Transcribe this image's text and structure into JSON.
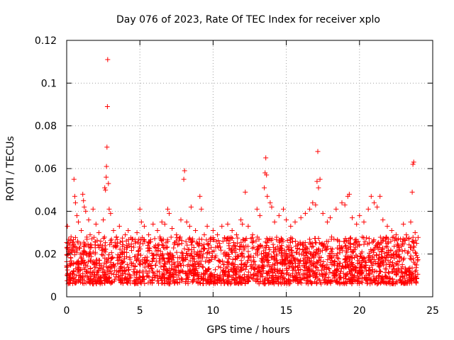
{
  "chart_data": {
    "type": "scatter",
    "title": "Day 076 of 2023, Rate Of TEC Index for receiver xplo",
    "xlabel": "GPS time / hours",
    "ylabel": "ROTI / TECUs",
    "xlim": [
      0,
      25
    ],
    "ylim": [
      0,
      0.12
    ],
    "x_ticks": [
      0,
      5,
      10,
      15,
      20,
      25
    ],
    "x_tick_labels": [
      "0",
      "5",
      "10",
      "15",
      "20",
      "25"
    ],
    "y_ticks": [
      0,
      0.02,
      0.04,
      0.06,
      0.08,
      0.1,
      0.12
    ],
    "y_tick_labels": [
      "0",
      "0.02",
      "0.04",
      "0.06",
      "0.08",
      "0.1",
      "0.12"
    ],
    "grid": true,
    "marker": "plus",
    "color": "#ff0000",
    "series": [
      {
        "name": "ROTI",
        "points": [
          [
            0.05,
            0.033
          ],
          [
            0.1,
            0.022
          ],
          [
            0.3,
            0.028
          ],
          [
            0.5,
            0.055
          ],
          [
            0.55,
            0.047
          ],
          [
            0.6,
            0.044
          ],
          [
            0.7,
            0.038
          ],
          [
            0.8,
            0.035
          ],
          [
            1.0,
            0.031
          ],
          [
            1.1,
            0.048
          ],
          [
            1.15,
            0.045
          ],
          [
            1.2,
            0.042
          ],
          [
            1.3,
            0.04
          ],
          [
            1.5,
            0.036
          ],
          [
            1.6,
            0.029
          ],
          [
            1.8,
            0.041
          ],
          [
            2.0,
            0.034
          ],
          [
            2.2,
            0.03
          ],
          [
            2.5,
            0.036
          ],
          [
            2.6,
            0.051
          ],
          [
            2.65,
            0.05
          ],
          [
            2.7,
            0.056
          ],
          [
            2.72,
            0.061
          ],
          [
            2.75,
            0.07
          ],
          [
            2.78,
            0.089
          ],
          [
            2.8,
            0.111
          ],
          [
            2.85,
            0.053
          ],
          [
            2.9,
            0.041
          ],
          [
            3.0,
            0.039
          ],
          [
            3.2,
            0.031
          ],
          [
            3.4,
            0.028
          ],
          [
            3.6,
            0.033
          ],
          [
            3.8,
            0.026
          ],
          [
            4.0,
            0.029
          ],
          [
            4.2,
            0.031
          ],
          [
            4.5,
            0.027
          ],
          [
            4.8,
            0.03
          ],
          [
            5.0,
            0.041
          ],
          [
            5.1,
            0.035
          ],
          [
            5.3,
            0.033
          ],
          [
            5.6,
            0.029
          ],
          [
            5.9,
            0.034
          ],
          [
            6.2,
            0.031
          ],
          [
            6.5,
            0.035
          ],
          [
            6.7,
            0.034
          ],
          [
            6.9,
            0.041
          ],
          [
            7.0,
            0.039
          ],
          [
            7.2,
            0.032
          ],
          [
            7.5,
            0.029
          ],
          [
            7.8,
            0.036
          ],
          [
            8.0,
            0.055
          ],
          [
            8.05,
            0.059
          ],
          [
            8.2,
            0.035
          ],
          [
            8.4,
            0.033
          ],
          [
            8.5,
            0.042
          ],
          [
            8.8,
            0.031
          ],
          [
            9.1,
            0.047
          ],
          [
            9.2,
            0.041
          ],
          [
            9.4,
            0.029
          ],
          [
            9.6,
            0.033
          ],
          [
            9.8,
            0.027
          ],
          [
            10.0,
            0.031
          ],
          [
            10.3,
            0.029
          ],
          [
            10.6,
            0.033
          ],
          [
            11.0,
            0.034
          ],
          [
            11.3,
            0.031
          ],
          [
            11.6,
            0.029
          ],
          [
            11.9,
            0.036
          ],
          [
            12.0,
            0.034
          ],
          [
            12.2,
            0.049
          ],
          [
            12.4,
            0.033
          ],
          [
            12.7,
            0.029
          ],
          [
            13.0,
            0.041
          ],
          [
            13.2,
            0.038
          ],
          [
            13.5,
            0.051
          ],
          [
            13.55,
            0.058
          ],
          [
            13.6,
            0.065
          ],
          [
            13.65,
            0.057
          ],
          [
            13.7,
            0.047
          ],
          [
            13.9,
            0.044
          ],
          [
            14.0,
            0.042
          ],
          [
            14.2,
            0.035
          ],
          [
            14.5,
            0.038
          ],
          [
            14.8,
            0.041
          ],
          [
            15.0,
            0.036
          ],
          [
            15.3,
            0.033
          ],
          [
            15.6,
            0.035
          ],
          [
            16.0,
            0.037
          ],
          [
            16.3,
            0.039
          ],
          [
            16.6,
            0.041
          ],
          [
            16.8,
            0.044
          ],
          [
            17.0,
            0.043
          ],
          [
            17.1,
            0.054
          ],
          [
            17.15,
            0.068
          ],
          [
            17.2,
            0.051
          ],
          [
            17.3,
            0.055
          ],
          [
            17.5,
            0.039
          ],
          [
            17.8,
            0.035
          ],
          [
            18.0,
            0.037
          ],
          [
            18.4,
            0.041
          ],
          [
            18.8,
            0.044
          ],
          [
            19.0,
            0.043
          ],
          [
            19.2,
            0.047
          ],
          [
            19.3,
            0.048
          ],
          [
            19.5,
            0.037
          ],
          [
            19.8,
            0.034
          ],
          [
            20.0,
            0.038
          ],
          [
            20.3,
            0.035
          ],
          [
            20.6,
            0.041
          ],
          [
            20.8,
            0.047
          ],
          [
            21.0,
            0.044
          ],
          [
            21.2,
            0.042
          ],
          [
            21.4,
            0.047
          ],
          [
            21.6,
            0.036
          ],
          [
            21.9,
            0.033
          ],
          [
            22.2,
            0.031
          ],
          [
            22.5,
            0.029
          ],
          [
            22.8,
            0.027
          ],
          [
            23.0,
            0.034
          ],
          [
            23.2,
            0.029
          ],
          [
            23.5,
            0.035
          ],
          [
            23.6,
            0.049
          ],
          [
            23.65,
            0.062
          ],
          [
            23.7,
            0.063
          ],
          [
            23.8,
            0.03
          ],
          [
            23.9,
            0.025
          ]
        ],
        "base_band": {
          "x_start": 0.0,
          "x_end": 24.0,
          "lower": 0.006,
          "upper": 0.028
        }
      }
    ]
  }
}
